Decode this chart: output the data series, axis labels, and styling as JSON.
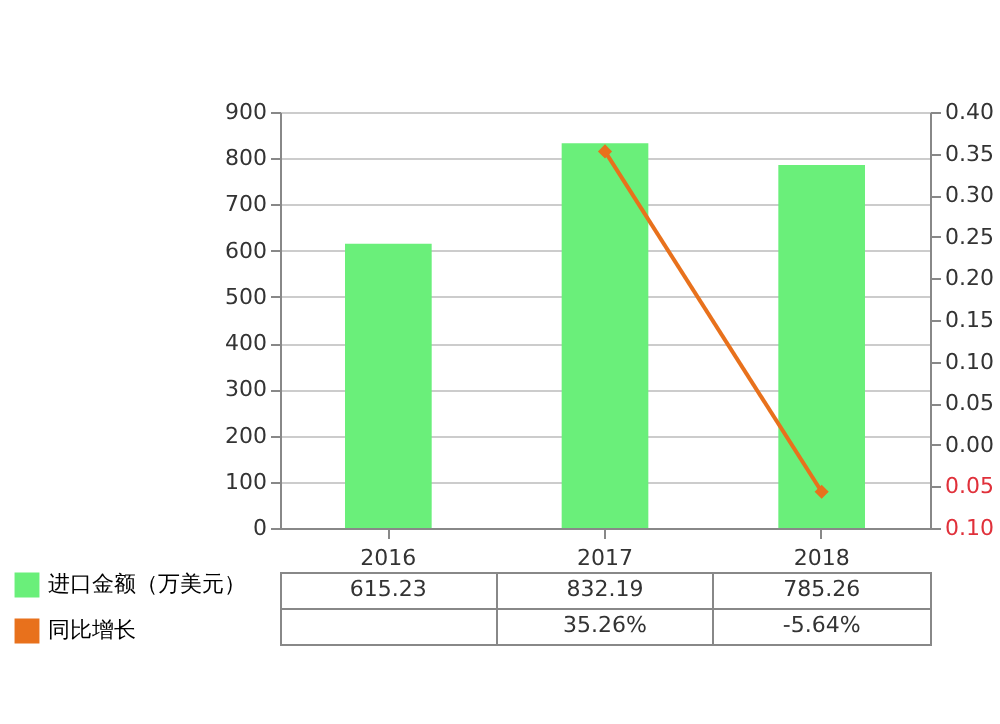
{
  "chart_data": {
    "type": "bar",
    "categories": [
      "2016",
      "2017",
      "2018"
    ],
    "series": [
      {
        "name": "进口金额（万美元）",
        "color": "#6aef7a",
        "values": [
          615.23,
          832.19,
          785.26
        ],
        "value_labels": [
          "615.23",
          "832.19",
          "785.26"
        ]
      },
      {
        "name": "同比增长",
        "type": "line",
        "axis": "y2",
        "color": "#e8711c",
        "values": [
          null,
          0.3526,
          -0.0564
        ],
        "value_labels": [
          null,
          "35.26%",
          "-5.64%"
        ],
        "marker": "diamond"
      }
    ],
    "ylim": [
      0,
      900
    ],
    "yticks": [
      0,
      100,
      200,
      300,
      400,
      500,
      600,
      700,
      800,
      900
    ],
    "y2lim": [
      -0.1,
      0.4
    ],
    "y2ticks": [
      {
        "value": -0.1,
        "label": "0.10"
      },
      {
        "value": -0.05,
        "label": "0.05"
      },
      {
        "value": 0,
        "label": "0.00"
      },
      {
        "value": 0.05,
        "label": "0.05"
      },
      {
        "value": 0.1,
        "label": "0.10"
      },
      {
        "value": 0.15,
        "label": "0.15"
      },
      {
        "value": 0.2,
        "label": "0.20"
      },
      {
        "value": 0.25,
        "label": "0.25"
      },
      {
        "value": 0.3,
        "label": "0.30"
      },
      {
        "value": 0.35,
        "label": "0.35"
      },
      {
        "value": 0.4,
        "label": "0.40"
      }
    ],
    "grid": "y",
    "legend": "bottom left"
  }
}
